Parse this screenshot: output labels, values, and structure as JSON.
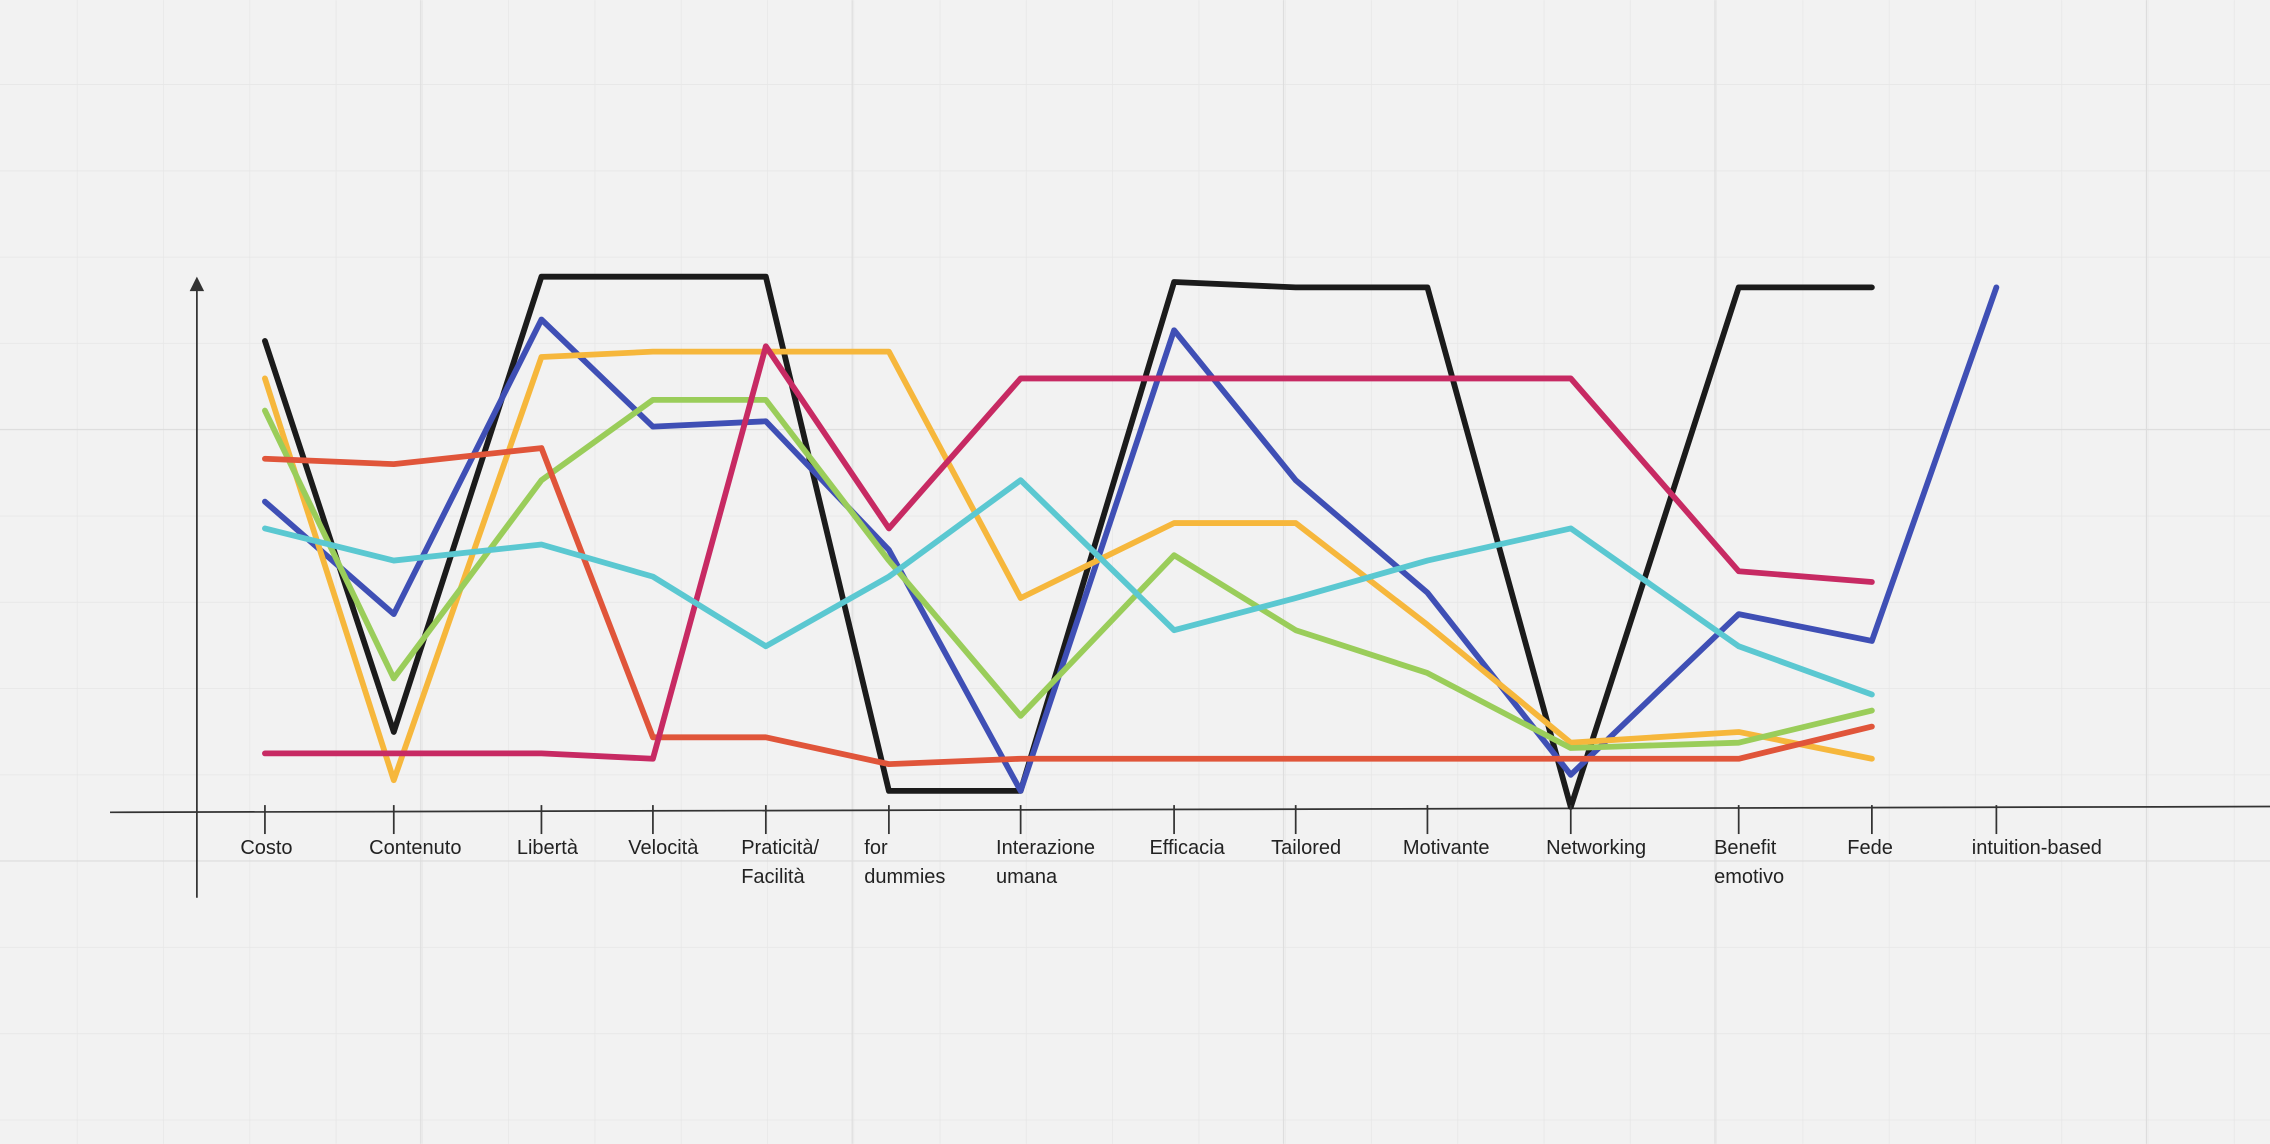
{
  "chart_data": {
    "type": "line",
    "categories": [
      "Costo",
      "Contenuto",
      "Libertà",
      "Velocità",
      "Praticità/\nFacilità",
      "for\ndummies",
      "Interazione\numana",
      "Efficacia",
      "Tailored",
      "Motivante",
      "Networking",
      "Benefit\nemotivo",
      "Fede",
      "intuition-based"
    ],
    "ylim": [
      0,
      10
    ],
    "series": [
      {
        "color": "#1b1b1b",
        "values": [
          8.8,
          1.5,
          10,
          10,
          10,
          0.4,
          0.4,
          9.9,
          9.8,
          9.8,
          0.1,
          9.8,
          9.8,
          null
        ]
      },
      {
        "color": "#3f4fb5",
        "values": [
          5.8,
          3.7,
          9.2,
          7.2,
          7.3,
          4.9,
          0.4,
          9.0,
          6.2,
          4.1,
          0.7,
          3.7,
          3.2,
          9.8
        ]
      },
      {
        "color": "#f6b73c",
        "values": [
          8.1,
          0.6,
          8.5,
          8.6,
          8.6,
          8.6,
          4.0,
          5.4,
          5.4,
          3.5,
          1.3,
          1.5,
          1.0,
          null
        ]
      },
      {
        "color": "#9acd5a",
        "values": [
          7.5,
          2.5,
          6.2,
          7.7,
          7.7,
          4.7,
          1.8,
          4.8,
          3.4,
          2.6,
          1.2,
          1.3,
          1.9,
          null
        ]
      },
      {
        "color": "#e0553a",
        "values": [
          6.6,
          6.5,
          6.8,
          1.4,
          1.4,
          0.9,
          1.0,
          1.0,
          1.0,
          1.0,
          1.0,
          1.0,
          1.6,
          null
        ]
      },
      {
        "color": "#c72a63",
        "values": [
          1.1,
          1.1,
          1.1,
          1.0,
          8.7,
          5.3,
          8.1,
          8.1,
          8.1,
          8.1,
          8.1,
          4.5,
          4.3,
          null
        ]
      },
      {
        "color": "#5bc8d1",
        "values": [
          5.3,
          4.7,
          5.0,
          4.4,
          3.1,
          4.4,
          6.2,
          3.4,
          4.0,
          4.7,
          5.3,
          3.1,
          2.2,
          null
        ]
      }
    ]
  }
}
